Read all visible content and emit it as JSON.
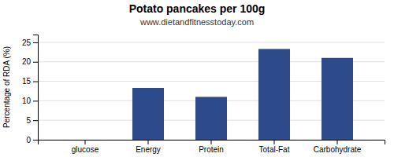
{
  "chart_data": {
    "type": "bar",
    "title": "Potato pancakes per 100g",
    "subtitle": "www.dietandfitnesstoday.com",
    "categories": [
      "glucose",
      "Energy",
      "Protein",
      "Total-Fat",
      "Carbohydrate"
    ],
    "values": [
      0,
      13.3,
      11.0,
      23.3,
      21.0
    ],
    "color": "#2d4a8a",
    "ylabel": "Percentage of RDA (%)",
    "ylim": [
      0,
      27
    ],
    "yticks": [
      0,
      5,
      10,
      15,
      20,
      25
    ],
    "grid": true
  }
}
